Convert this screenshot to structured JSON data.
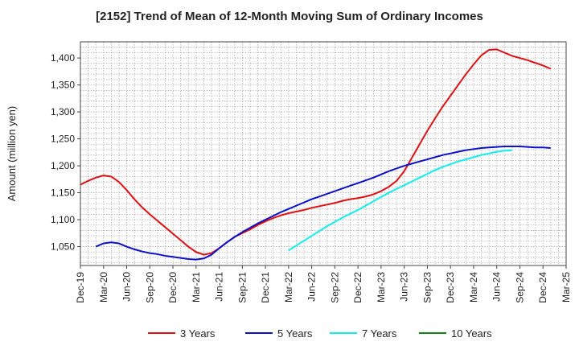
{
  "chart_data": {
    "type": "line",
    "title": "[2152]  Trend of Mean of 12-Month Moving Sum of Ordinary Incomes",
    "xlabel": "",
    "ylabel": "Amount (million yen)",
    "ylim": [
      1015,
      1430
    ],
    "yticks": [
      1050,
      1100,
      1150,
      1200,
      1250,
      1300,
      1350,
      1400
    ],
    "ytick_labels": [
      "1,050",
      "1,100",
      "1,150",
      "1,200",
      "1,250",
      "1,300",
      "1,350",
      "1,400"
    ],
    "x_start": "Dec-19",
    "x_months": 63,
    "xtick_labels": [
      "Dec-19",
      "Mar-20",
      "Jun-20",
      "Sep-20",
      "Dec-20",
      "Mar-21",
      "Jun-21",
      "Sep-21",
      "Dec-21",
      "Mar-22",
      "Jun-22",
      "Sep-22",
      "Dec-22",
      "Mar-23",
      "Jun-23",
      "Sep-23",
      "Dec-23",
      "Mar-24",
      "Jun-24",
      "Sep-24",
      "Dec-24",
      "Mar-25"
    ],
    "grid": true,
    "legend_position": "bottom",
    "series": [
      {
        "name": "3 Years",
        "color": "#dd1111",
        "start": 0,
        "values": [
          1165,
          1172,
          1178,
          1182,
          1180,
          1170,
          1155,
          1138,
          1123,
          1110,
          1098,
          1086,
          1074,
          1062,
          1050,
          1040,
          1035,
          1038,
          1047,
          1058,
          1068,
          1075,
          1082,
          1090,
          1097,
          1103,
          1108,
          1112,
          1115,
          1118,
          1122,
          1125,
          1128,
          1131,
          1135,
          1138,
          1140,
          1143,
          1147,
          1153,
          1161,
          1172,
          1190,
          1215,
          1240,
          1265,
          1288,
          1310,
          1330,
          1350,
          1370,
          1388,
          1405,
          1415,
          1416,
          1410,
          1404,
          1400,
          1396,
          1391,
          1386,
          1380
        ]
      },
      {
        "name": "5 Years",
        "color": "#0b11c9",
        "start": 2,
        "values": [
          1050,
          1056,
          1058,
          1056,
          1050,
          1045,
          1041,
          1038,
          1036,
          1033,
          1031,
          1029,
          1027,
          1026,
          1028,
          1035,
          1047,
          1058,
          1068,
          1077,
          1085,
          1093,
          1100,
          1107,
          1114,
          1120,
          1126,
          1132,
          1138,
          1143,
          1148,
          1153,
          1158,
          1163,
          1168,
          1173,
          1178,
          1184,
          1190,
          1195,
          1200,
          1204,
          1208,
          1212,
          1216,
          1220,
          1223,
          1226,
          1229,
          1231,
          1233,
          1234,
          1235,
          1236,
          1236,
          1236,
          1235,
          1234,
          1234,
          1233
        ]
      },
      {
        "name": "7 Years",
        "color": "#11eeee",
        "start": 27,
        "values": [
          1043,
          1052,
          1061,
          1070,
          1079,
          1088,
          1096,
          1104,
          1111,
          1118,
          1126,
          1134,
          1142,
          1150,
          1157,
          1164,
          1171,
          1178,
          1185,
          1192,
          1198,
          1203,
          1208,
          1212,
          1216,
          1220,
          1223,
          1226,
          1228,
          1229
        ]
      },
      {
        "name": "10 Years",
        "color": "#118811",
        "start": 0,
        "values": []
      }
    ]
  }
}
